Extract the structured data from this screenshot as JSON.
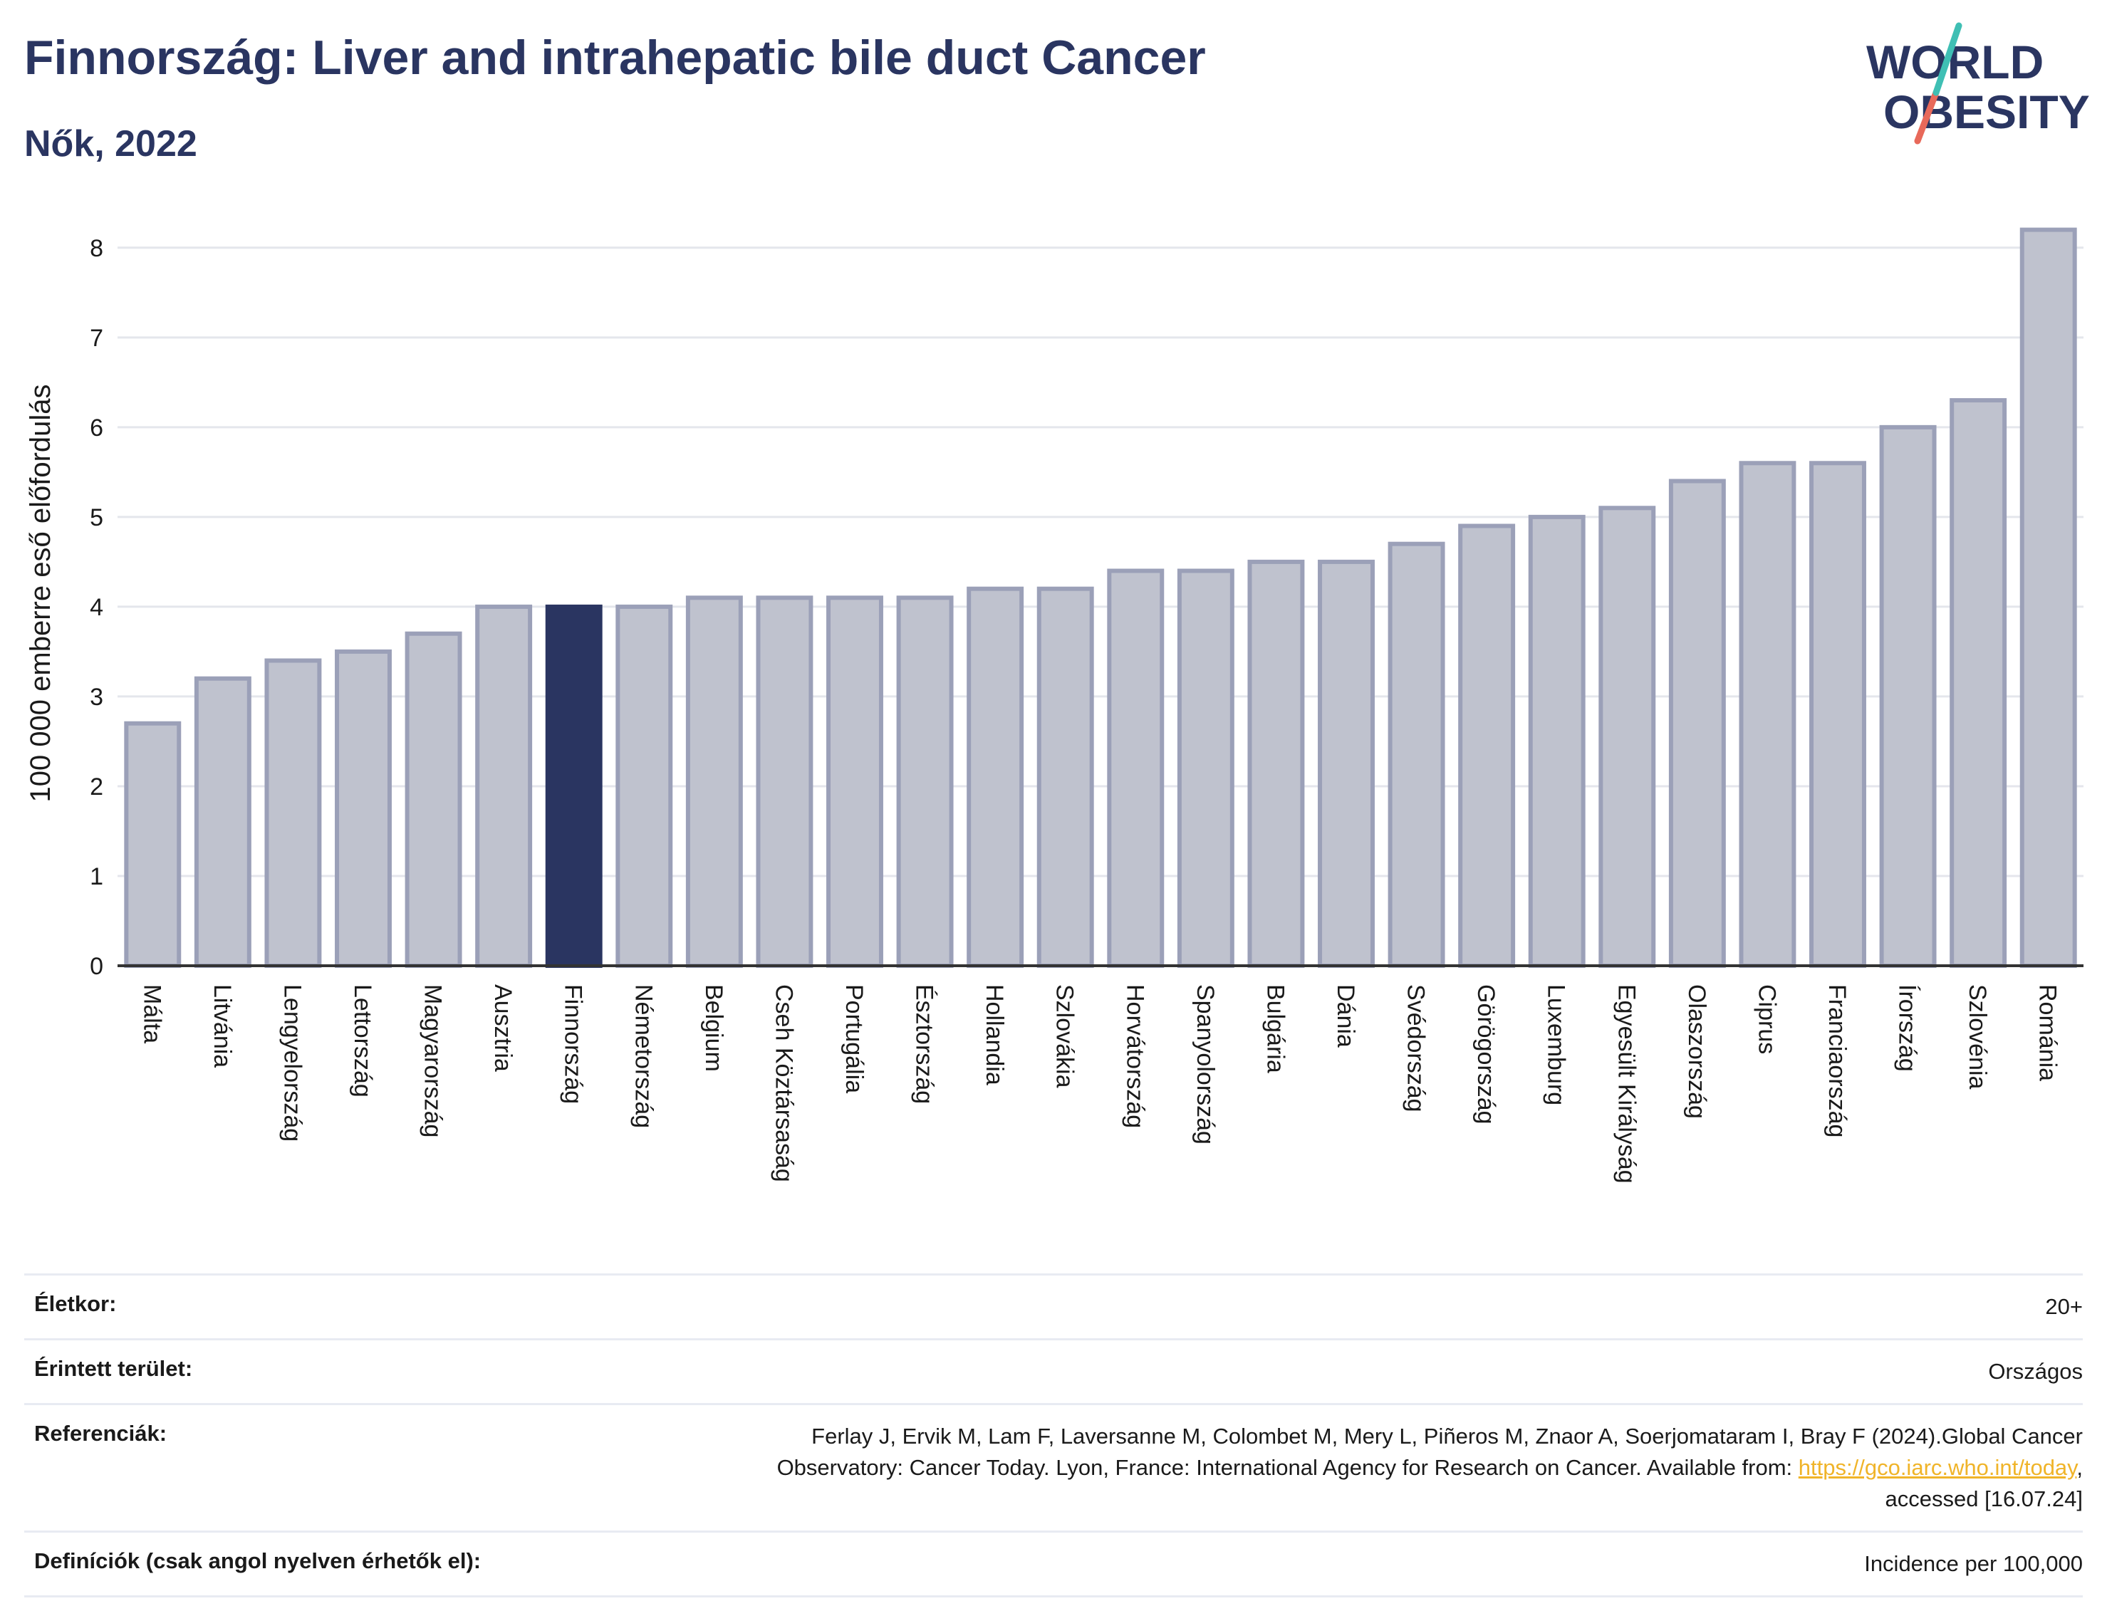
{
  "header": {
    "title": "Finnország: Liver and intrahepatic bile duct Cancer",
    "subtitle": "Nők, 2022"
  },
  "logo": {
    "line1": "WORLD",
    "line2": "OBESITY",
    "icon": "world-obesity-logo"
  },
  "chart_data": {
    "type": "bar",
    "ylabel": "100 000 emberre eső előfordulás",
    "ylim": [
      0,
      8.3
    ],
    "yticks": [
      0,
      1,
      2,
      3,
      4,
      5,
      6,
      7,
      8
    ],
    "grid": true,
    "categories": [
      "Málta",
      "Litvánia",
      "Lengyelország",
      "Lettország",
      "Magyarország",
      "Ausztria",
      "Finnország",
      "Németország",
      "Belgium",
      "Cseh Köztársaság",
      "Portugália",
      "Észtország",
      "Hollandia",
      "Szlovákia",
      "Horvátország",
      "Spanyolország",
      "Bulgária",
      "Dánia",
      "Svédország",
      "Görögország",
      "Luxemburg",
      "Egyesült Királyság",
      "Olaszország",
      "Ciprus",
      "Franciaország",
      "Írország",
      "Szlovénia",
      "Románia"
    ],
    "values": [
      2.7,
      3.2,
      3.4,
      3.5,
      3.7,
      4.0,
      4.0,
      4.0,
      4.1,
      4.1,
      4.1,
      4.1,
      4.2,
      4.2,
      4.4,
      4.4,
      4.5,
      4.5,
      4.7,
      4.9,
      5.0,
      5.1,
      5.4,
      5.6,
      5.6,
      6.0,
      6.3,
      8.2
    ],
    "highlight": "Finnország",
    "colors": {
      "bar": "#bfc2ce",
      "bar_border": "#9ba0b8",
      "highlight": "#2a3561",
      "grid": "#e4e6ec",
      "axis": "#333333"
    }
  },
  "info": {
    "age_label": "Életkor:",
    "age_value": "20+",
    "area_label": "Érintett terület:",
    "area_value": "Országos",
    "ref_label": "Referenciák:",
    "ref_text_1": "Ferlay J, Ervik M, Lam F, Laversanne M, Colombet M, Mery L, Piñeros M, Znaor A, Soerjomataram I, Bray F (2024).Global Cancer",
    "ref_text_2": "Observatory: Cancer Today. Lyon, France: International Agency for Research on Cancer. Available from: ",
    "ref_link": "https://gco.iarc.who.int/today",
    "ref_text_3": ",",
    "ref_text_4": "accessed [16.07.24]",
    "def_label": "Definíciók (csak angol nyelven érhetők el):",
    "def_value": "Incidence per 100,000"
  }
}
